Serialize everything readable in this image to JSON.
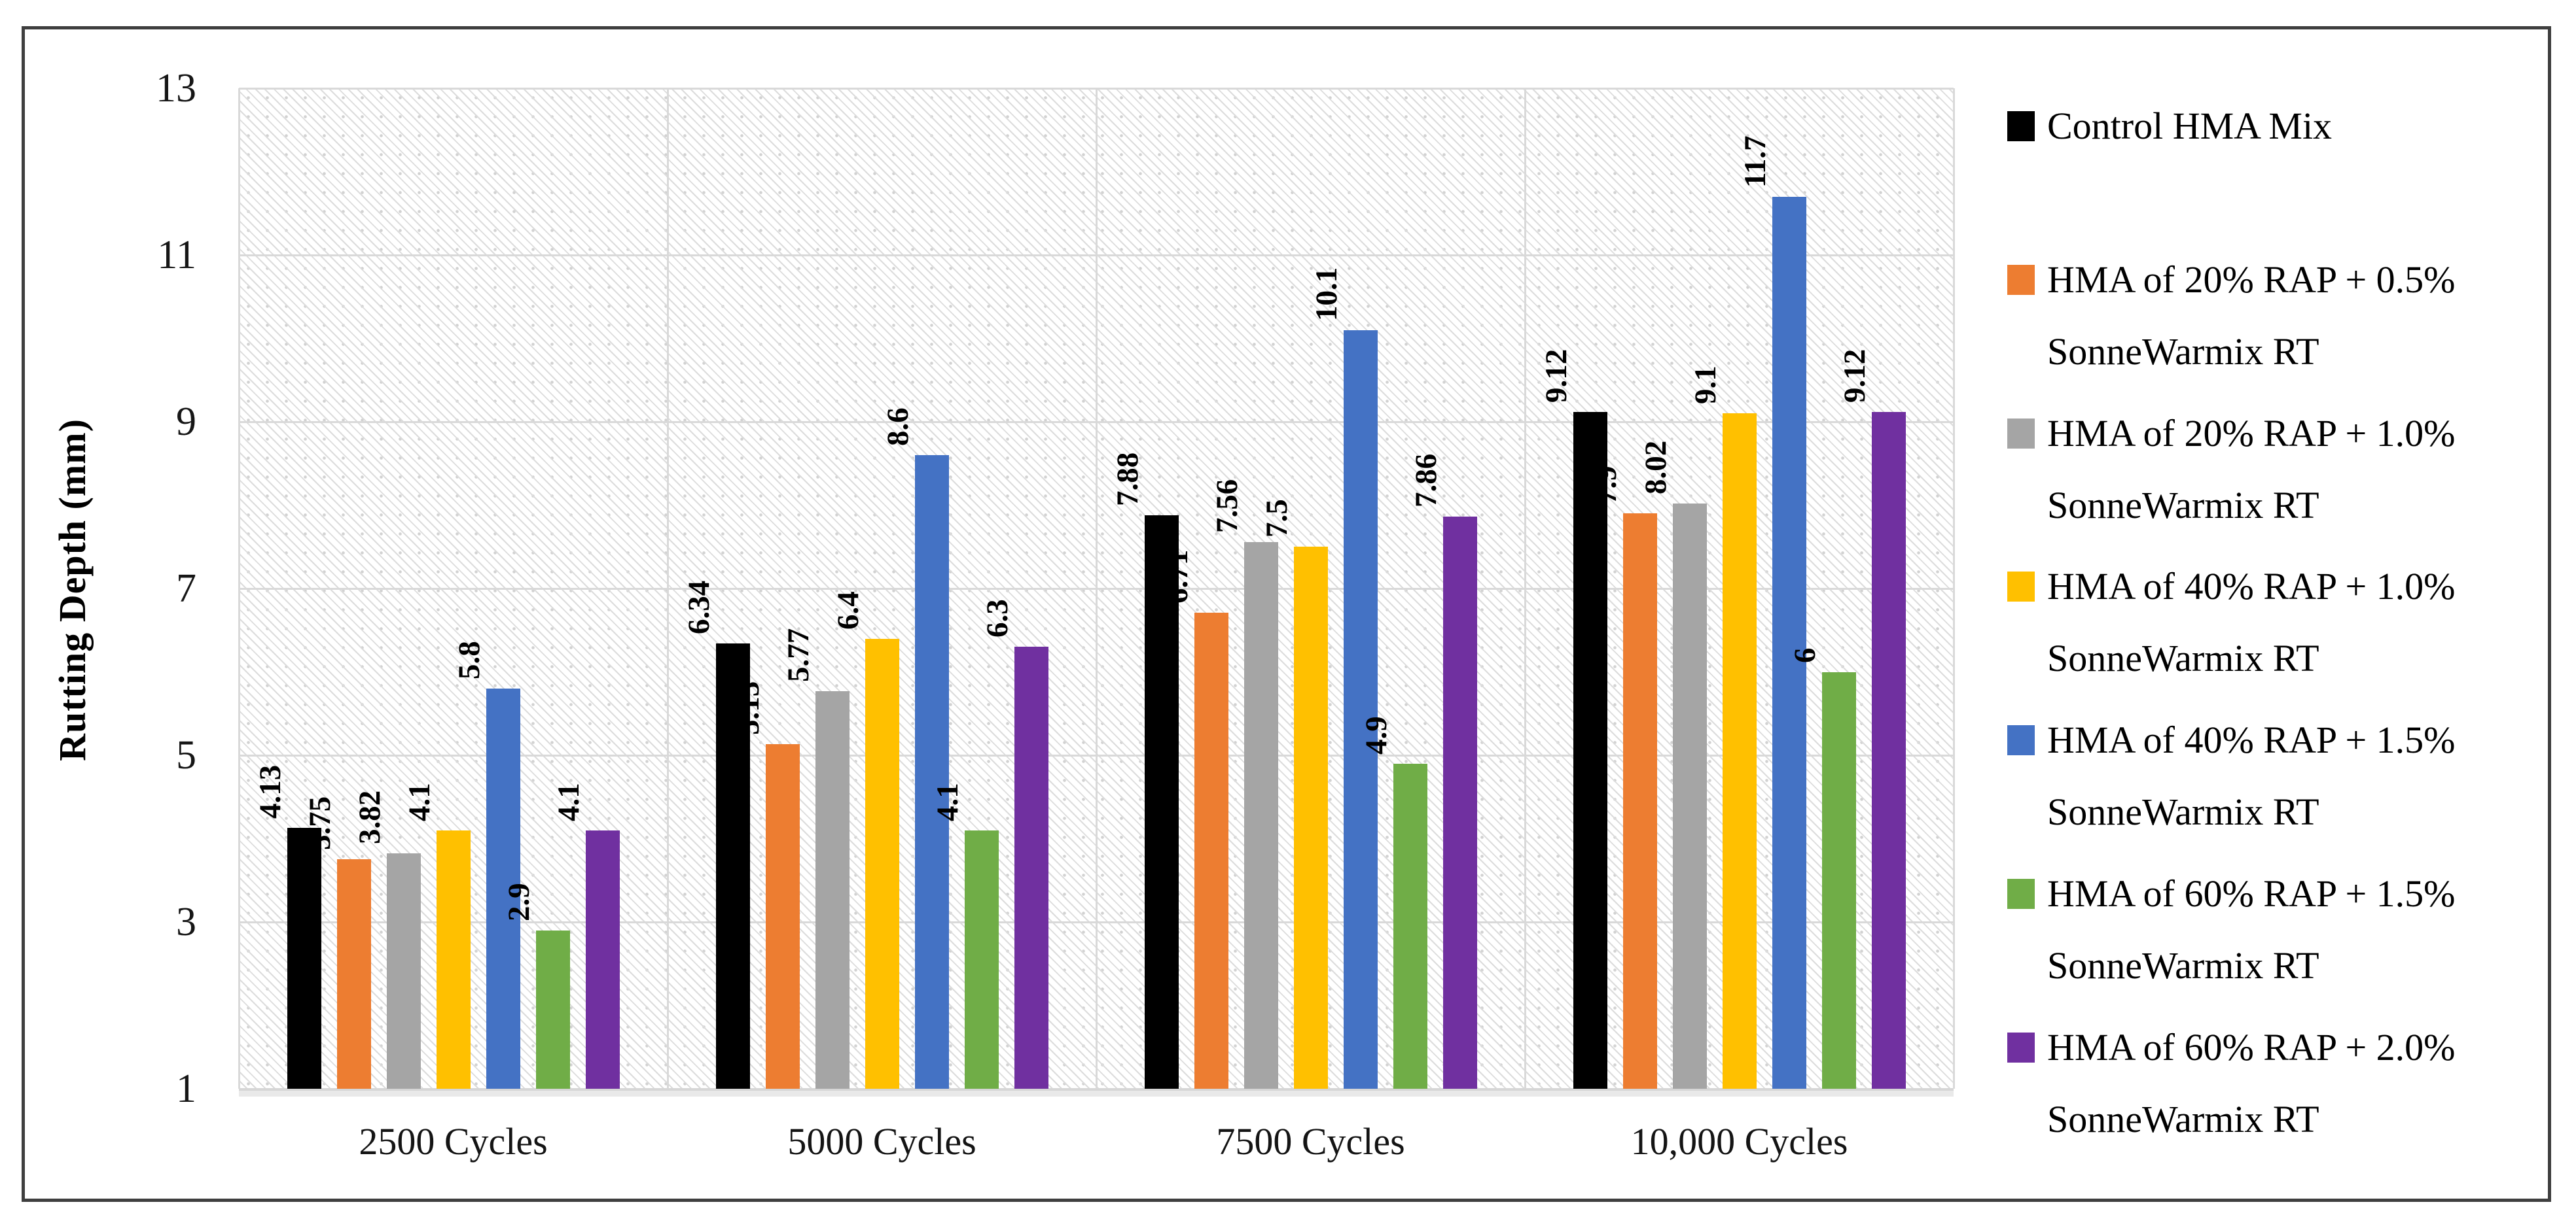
{
  "figure": {
    "background": "#ffffff",
    "border_color": "#3f3f3f"
  },
  "chart_data": {
    "type": "bar",
    "title": "",
    "xlabel": "",
    "ylabel": "Rutting Depth (mm)",
    "ylim": [
      1,
      13
    ],
    "yticks": [
      1,
      3,
      5,
      7,
      9,
      11,
      13
    ],
    "grid": true,
    "gridline_color": "#d9d9d9",
    "plot_bg_pattern": "light-gray-diagonal-hatch-with-dots",
    "legend_position": "right",
    "categories": [
      "2500 Cycles",
      "5000 Cycles",
      "7500 Cycles",
      "10,000 Cycles"
    ],
    "series": [
      {
        "name": "Control HMA Mix",
        "color": "#000000",
        "values": [
          4.13,
          6.34,
          7.88,
          9.12
        ]
      },
      {
        "name": "HMA of 20% RAP + 0.5% SonneWarmix RT",
        "color": "#ED7D31",
        "values": [
          3.75,
          5.13,
          6.71,
          7.9
        ]
      },
      {
        "name": "HMA of 20% RAP + 1.0% SonneWarmix RT",
        "color": "#A5A5A5",
        "values": [
          3.82,
          5.77,
          7.56,
          8.02
        ]
      },
      {
        "name": "HMA of 40% RAP + 1.0% SonneWarmix RT",
        "color": "#FFC000",
        "values": [
          4.1,
          6.4,
          7.5,
          9.1
        ]
      },
      {
        "name": "HMA of 40% RAP + 1.5% SonneWarmix RT",
        "color": "#4472C4",
        "values": [
          5.8,
          8.6,
          10.1,
          11.7
        ]
      },
      {
        "name": "HMA of 60% RAP + 1.5% SonneWarmix RT",
        "color": "#70AD47",
        "values": [
          2.9,
          4.1,
          4.9,
          6
        ]
      },
      {
        "name": "HMA of 60% RAP + 2.0% SonneWarmix RT",
        "color": "#7030A0",
        "values": [
          4.1,
          6.3,
          7.86,
          9.12
        ]
      }
    ],
    "legend": [
      {
        "color": "#000000",
        "lines": [
          "Control HMA Mix"
        ]
      },
      {
        "color": "#ED7D31",
        "lines": [
          "HMA of 20% RAP + 0.5%",
          "SonneWarmix RT"
        ]
      },
      {
        "color": "#A5A5A5",
        "lines": [
          "HMA of 20% RAP + 1.0%",
          "SonneWarmix RT"
        ]
      },
      {
        "color": "#FFC000",
        "lines": [
          "HMA of 40% RAP + 1.0%",
          "SonneWarmix RT"
        ]
      },
      {
        "color": "#4472C4",
        "lines": [
          "HMA of 40% RAP + 1.5%",
          "SonneWarmix RT"
        ]
      },
      {
        "color": "#70AD47",
        "lines": [
          "HMA of 60% RAP + 1.5%",
          "SonneWarmix RT"
        ]
      },
      {
        "color": "#7030A0",
        "lines": [
          "HMA of 60% RAP + 2.0%",
          "SonneWarmix RT"
        ]
      }
    ]
  }
}
